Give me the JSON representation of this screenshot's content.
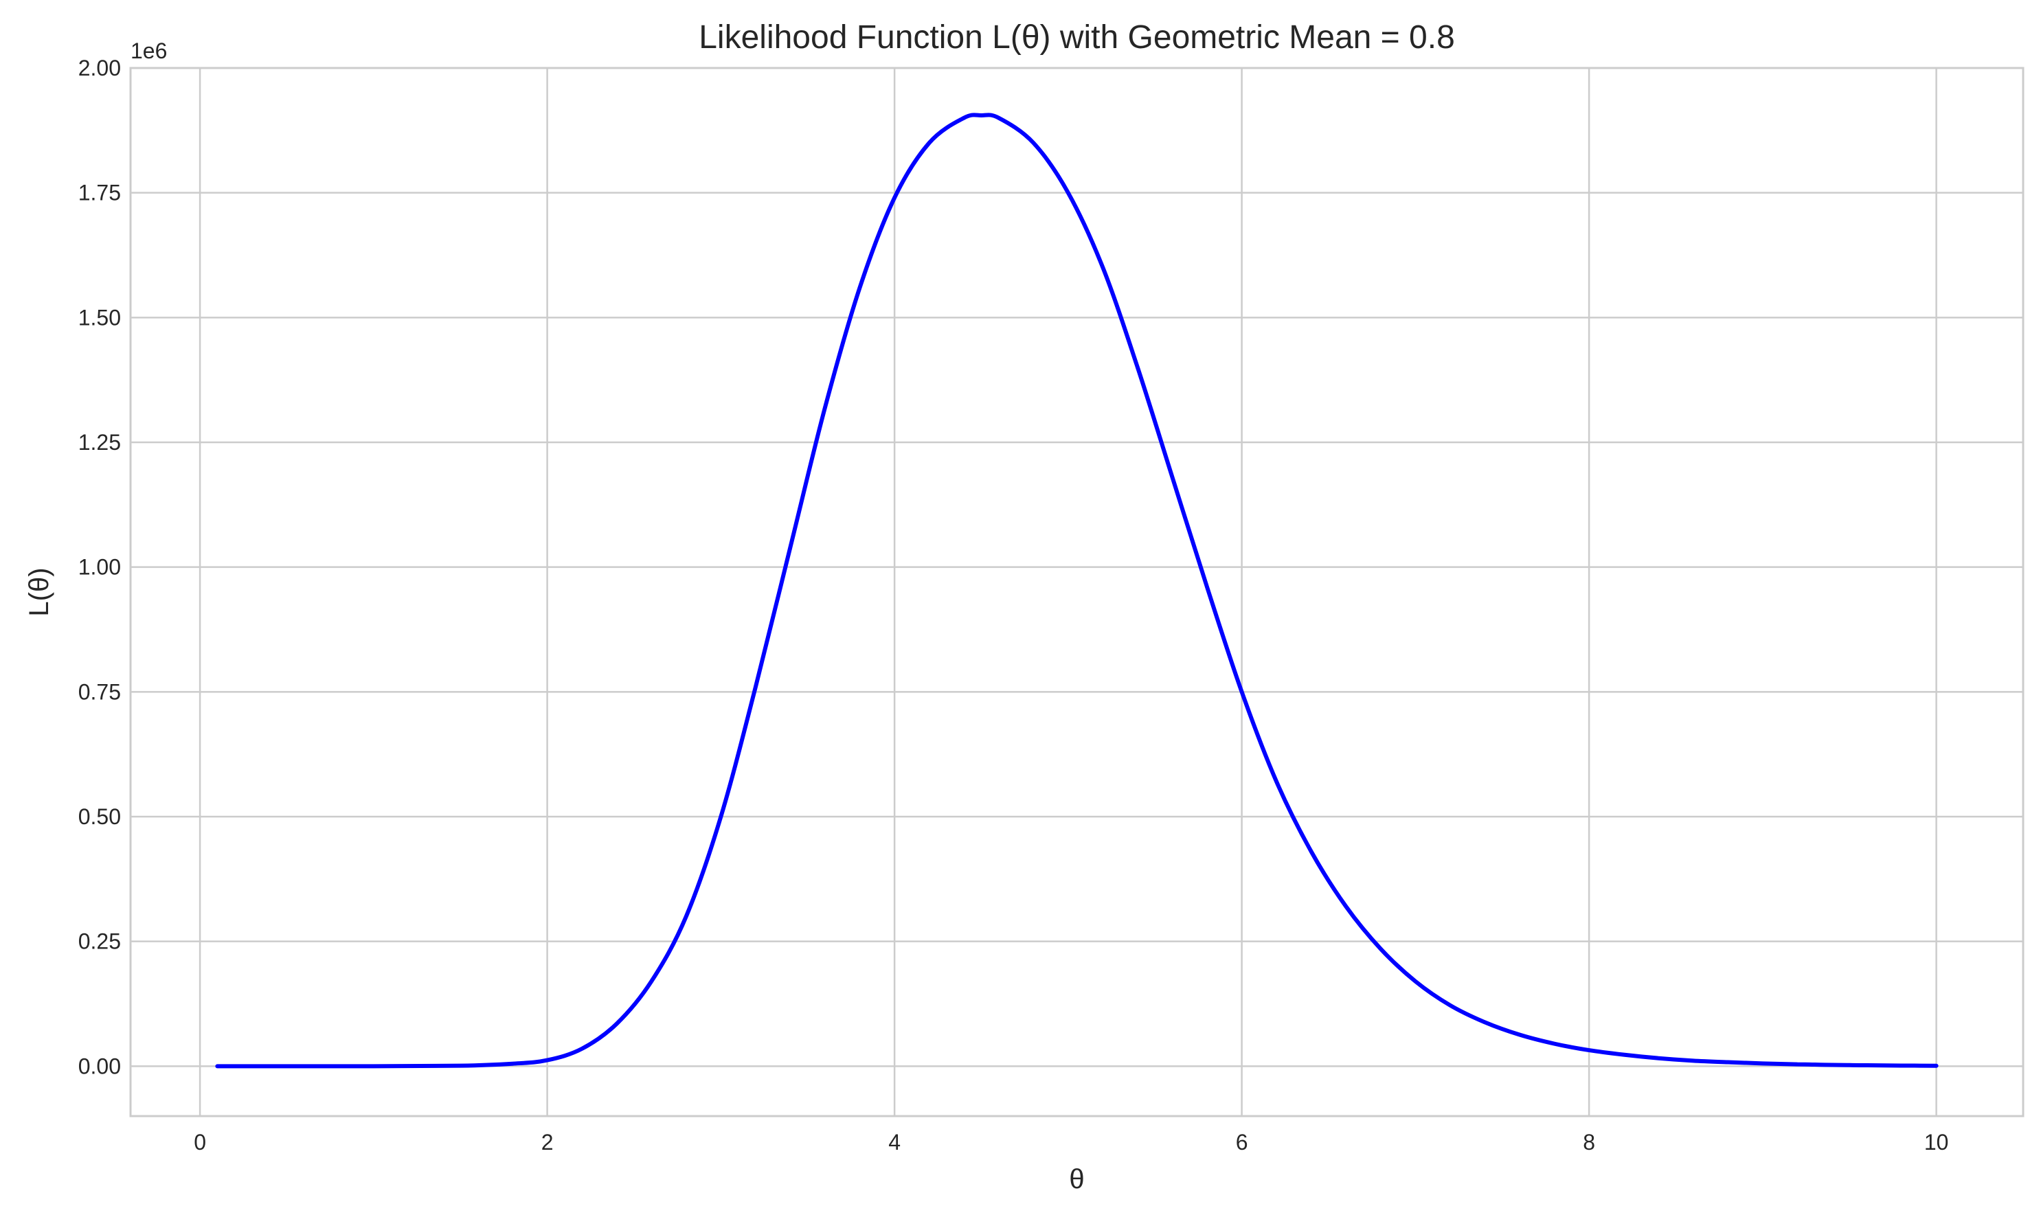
{
  "chart_data": {
    "type": "line",
    "title": "Likelihood Function L(θ) with Geometric Mean = 0.8",
    "xlabel": "θ",
    "ylabel": "L(θ)",
    "y_offset_label": "1e6",
    "xlim": [
      -0.4,
      10.5
    ],
    "ylim": [
      -0.1,
      2.0
    ],
    "x_ticks": [
      0,
      2,
      4,
      6,
      8,
      10
    ],
    "x_tick_labels": [
      "0",
      "2",
      "4",
      "6",
      "8",
      "10"
    ],
    "y_ticks": [
      0.0,
      0.25,
      0.5,
      0.75,
      1.0,
      1.25,
      1.5,
      1.75,
      2.0
    ],
    "y_tick_labels": [
      "0.00",
      "0.25",
      "0.50",
      "0.75",
      "1.00",
      "1.25",
      "1.50",
      "1.75",
      "2.00"
    ],
    "grid": true,
    "series": [
      {
        "color": "#0000ff",
        "x": [
          0.1,
          0.5,
          1.0,
          1.5,
          1.8,
          2.0,
          2.2,
          2.4,
          2.6,
          2.8,
          3.0,
          3.2,
          3.4,
          3.6,
          3.8,
          4.0,
          4.2,
          4.4,
          4.5,
          4.6,
          4.8,
          5.0,
          5.2,
          5.4,
          5.6,
          5.8,
          6.0,
          6.2,
          6.4,
          6.6,
          6.8,
          7.0,
          7.2,
          7.4,
          7.6,
          7.8,
          8.0,
          8.2,
          8.4,
          8.6,
          8.8,
          9.0,
          9.2,
          9.4,
          9.6,
          9.8,
          10.0
        ],
        "y": [
          0.0,
          0.0,
          0.0,
          0.001,
          0.005,
          0.012,
          0.035,
          0.085,
          0.17,
          0.3,
          0.5,
          0.76,
          1.04,
          1.32,
          1.56,
          1.74,
          1.85,
          1.9,
          1.905,
          1.9,
          1.85,
          1.75,
          1.6,
          1.4,
          1.18,
          0.96,
          0.75,
          0.57,
          0.43,
          0.32,
          0.235,
          0.17,
          0.122,
          0.088,
          0.063,
          0.045,
          0.032,
          0.023,
          0.016,
          0.011,
          0.008,
          0.0055,
          0.0038,
          0.0026,
          0.0018,
          0.0012,
          0.0008
        ]
      }
    ]
  }
}
